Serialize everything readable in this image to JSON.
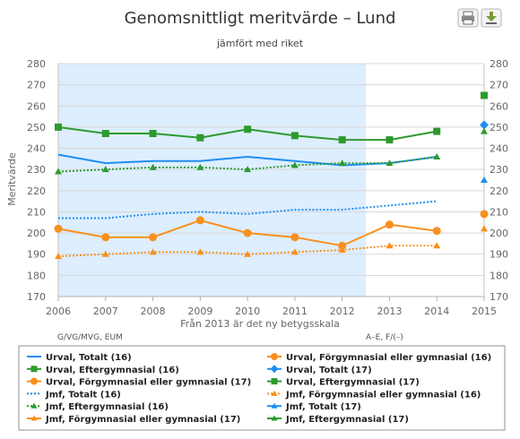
{
  "chart_data": {
    "type": "line",
    "title": "Genomsnittligt meritvärde – Lund",
    "subtitle": "jämfört med riket",
    "ylabel": "Meritvärde",
    "xlabel": "Från 2013 är det ny betygsskala",
    "x": [
      2006,
      2007,
      2008,
      2009,
      2010,
      2011,
      2012,
      2013,
      2014,
      2015
    ],
    "ylim": [
      170,
      280
    ],
    "yticks": [
      170,
      180,
      190,
      200,
      210,
      220,
      230,
      240,
      250,
      260,
      270,
      280
    ],
    "grid": true,
    "legend_position": "bottom",
    "shaded_band": {
      "from": 2006,
      "to": 2012.5,
      "color": "#ddeeff"
    },
    "scale_notes": [
      "G/VG/MVG, EUM",
      "A–E, F/(–)"
    ],
    "colors": {
      "blue": "#1f8ef0",
      "green": "#2e9a2e",
      "orange": "#f7901e"
    },
    "series": [
      {
        "name": "Urval, Totalt (16)",
        "color": "#1f8ef0",
        "style": "solid",
        "marker": "none",
        "values": [
          237,
          233,
          234,
          234,
          236,
          234,
          232,
          233,
          236,
          null
        ]
      },
      {
        "name": "Urval, Eftergymnasial (16)",
        "color": "#2e9a2e",
        "style": "solid",
        "marker": "square",
        "values": [
          250,
          247,
          247,
          245,
          249,
          246,
          244,
          244,
          248,
          null
        ]
      },
      {
        "name": "Urval, Förgymnasial eller gymnasial (17)",
        "color": "#f7901e",
        "style": "none",
        "marker": "circle",
        "values": [
          null,
          null,
          null,
          null,
          null,
          null,
          null,
          null,
          null,
          209
        ]
      },
      {
        "name": "Jmf, Totalt (16)",
        "color": "#1f8ef0",
        "style": "dotted",
        "marker": "none",
        "values": [
          207,
          207,
          209,
          210,
          209,
          211,
          211,
          213,
          215,
          null
        ]
      },
      {
        "name": "Jmf, Eftergymnasial (16)",
        "color": "#2e9a2e",
        "style": "dotted",
        "marker": "triangle",
        "values": [
          229,
          230,
          231,
          231,
          230,
          232,
          233,
          233,
          236,
          null
        ]
      },
      {
        "name": "Jmf, Förgymnasial eller gymnasial (17)",
        "color": "#f7901e",
        "style": "none",
        "marker": "triangle",
        "values": [
          null,
          null,
          null,
          null,
          null,
          null,
          null,
          null,
          null,
          202
        ]
      },
      {
        "name": "Urval, Förgymnasial eller gymnasial (16)",
        "color": "#f7901e",
        "style": "solid",
        "marker": "circle",
        "values": [
          202,
          198,
          198,
          206,
          200,
          198,
          194,
          204,
          201,
          null
        ]
      },
      {
        "name": "Urval, Totalt (17)",
        "color": "#1f8ef0",
        "style": "none",
        "marker": "diamond",
        "values": [
          null,
          null,
          null,
          null,
          null,
          null,
          null,
          null,
          null,
          251
        ]
      },
      {
        "name": "Urval, Eftergymnasial (17)",
        "color": "#2e9a2e",
        "style": "none",
        "marker": "square",
        "values": [
          null,
          null,
          null,
          null,
          null,
          null,
          null,
          null,
          null,
          265
        ]
      },
      {
        "name": "Jmf, Förgymnasial eller gymnasial (16)",
        "color": "#f7901e",
        "style": "dotted",
        "marker": "triangle",
        "values": [
          189,
          190,
          191,
          191,
          190,
          191,
          192,
          194,
          194,
          null
        ]
      },
      {
        "name": "Jmf, Totalt (17)",
        "color": "#1f8ef0",
        "style": "none",
        "marker": "triangle",
        "values": [
          null,
          null,
          null,
          null,
          null,
          null,
          null,
          null,
          null,
          225
        ]
      },
      {
        "name": "Jmf, Eftergymnasial (17)",
        "color": "#2e9a2e",
        "style": "none",
        "marker": "triangle",
        "values": [
          null,
          null,
          null,
          null,
          null,
          null,
          null,
          null,
          null,
          248
        ]
      }
    ]
  },
  "toolbar": {
    "print_icon": "print-icon",
    "download_icon": "download-icon"
  }
}
